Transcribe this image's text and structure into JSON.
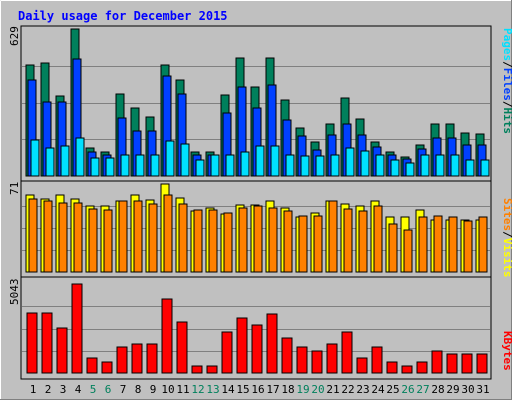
{
  "title": "Daily usage for December 2015",
  "colors": {
    "background": "#c0c0c0",
    "title": "#0000ff",
    "hits": "#00805c",
    "files": "#0040ff",
    "pages": "#00e0ff",
    "visits": "#ffff00",
    "sites": "#ff8000",
    "kbytes": "#ff0000",
    "weekday_label": "#000000",
    "weekend_label": "#00805c",
    "gridline": "#808080"
  },
  "legend": {
    "pages": "Pages",
    "files": "Files",
    "hits": "Hits",
    "sites": "Sites",
    "visits": "Visits",
    "kbytes": "KBytes",
    "sep": "/"
  },
  "chart_data": [
    {
      "type": "bar",
      "panel": "hits-files-pages",
      "ymax_label": "629",
      "ylim": [
        0,
        629
      ],
      "categories": [
        "1",
        "2",
        "3",
        "4",
        "5",
        "6",
        "7",
        "8",
        "9",
        "10",
        "11",
        "12",
        "13",
        "14",
        "15",
        "16",
        "17",
        "18",
        "19",
        "20",
        "21",
        "22",
        "23",
        "24",
        "25",
        "26",
        "27",
        "28",
        "29",
        "30",
        "31"
      ],
      "weekend_days": [
        "5",
        "6",
        "12",
        "13",
        "19",
        "20",
        "26",
        "27"
      ],
      "series": [
        {
          "name": "Hits",
          "values": [
            475,
            484,
            342,
            629,
            119,
            102,
            352,
            289,
            253,
            475,
            409,
            102,
            102,
            347,
            504,
            382,
            504,
            324,
            207,
            144,
            222,
            335,
            242,
            144,
            102,
            83,
            134,
            222,
            222,
            183,
            178
          ]
        },
        {
          "name": "Files",
          "values": [
            410,
            316,
            316,
            501,
            104,
            91,
            250,
            192,
            192,
            428,
            350,
            91,
            91,
            268,
            379,
            292,
            388,
            240,
            172,
            113,
            177,
            222,
            177,
            124,
            91,
            71,
            115,
            164,
            164,
            134,
            134
          ]
        },
        {
          "name": "Pages",
          "values": [
            155,
            119,
            130,
            162,
            78,
            78,
            91,
            91,
            91,
            149,
            138,
            69,
            91,
            91,
            104,
            130,
            130,
            91,
            86,
            86,
            91,
            119,
            108,
            91,
            69,
            54,
            91,
            91,
            91,
            69,
            69
          ]
        }
      ]
    },
    {
      "type": "bar",
      "panel": "visits-sites",
      "ymax_label": "71",
      "ylim": [
        0,
        71
      ],
      "categories": [
        "1",
        "2",
        "3",
        "4",
        "5",
        "6",
        "7",
        "8",
        "9",
        "10",
        "11",
        "12",
        "13",
        "14",
        "15",
        "16",
        "17",
        "18",
        "19",
        "20",
        "21",
        "22",
        "23",
        "24",
        "25",
        "26",
        "27",
        "28",
        "29",
        "30",
        "31"
      ],
      "series": [
        {
          "name": "Visits",
          "values": [
            62,
            59,
            62,
            59,
            53,
            53,
            57,
            62,
            58,
            71,
            60,
            49,
            52,
            47,
            54,
            54,
            57,
            52,
            44,
            48,
            57,
            55,
            53,
            57,
            44,
            44,
            50,
            42,
            42,
            42,
            42
          ]
        },
        {
          "name": "Sites",
          "values": [
            59,
            57,
            56,
            56,
            51,
            50,
            57,
            57,
            55,
            62,
            55,
            50,
            50,
            48,
            52,
            53,
            52,
            49,
            45,
            45,
            57,
            51,
            49,
            53,
            39,
            34,
            44,
            45,
            44,
            41,
            44
          ]
        }
      ]
    },
    {
      "type": "bar",
      "panel": "kbytes",
      "ymax_label": "5043",
      "ylim": [
        0,
        5043
      ],
      "categories": [
        "1",
        "2",
        "3",
        "4",
        "5",
        "6",
        "7",
        "8",
        "9",
        "10",
        "11",
        "12",
        "13",
        "14",
        "15",
        "16",
        "17",
        "18",
        "19",
        "20",
        "21",
        "22",
        "23",
        "24",
        "25",
        "26",
        "27",
        "28",
        "29",
        "30",
        "31"
      ],
      "series": [
        {
          "name": "KBytes",
          "values": [
            3375,
            3375,
            2540,
            5043,
            835,
            626,
            1460,
            1670,
            1670,
            4210,
            2880,
            417,
            417,
            2300,
            3125,
            2710,
            3330,
            2004,
            1460,
            1250,
            1670,
            2300,
            835,
            1460,
            626,
            417,
            626,
            1250,
            1084,
            1084,
            1084
          ]
        }
      ]
    }
  ]
}
